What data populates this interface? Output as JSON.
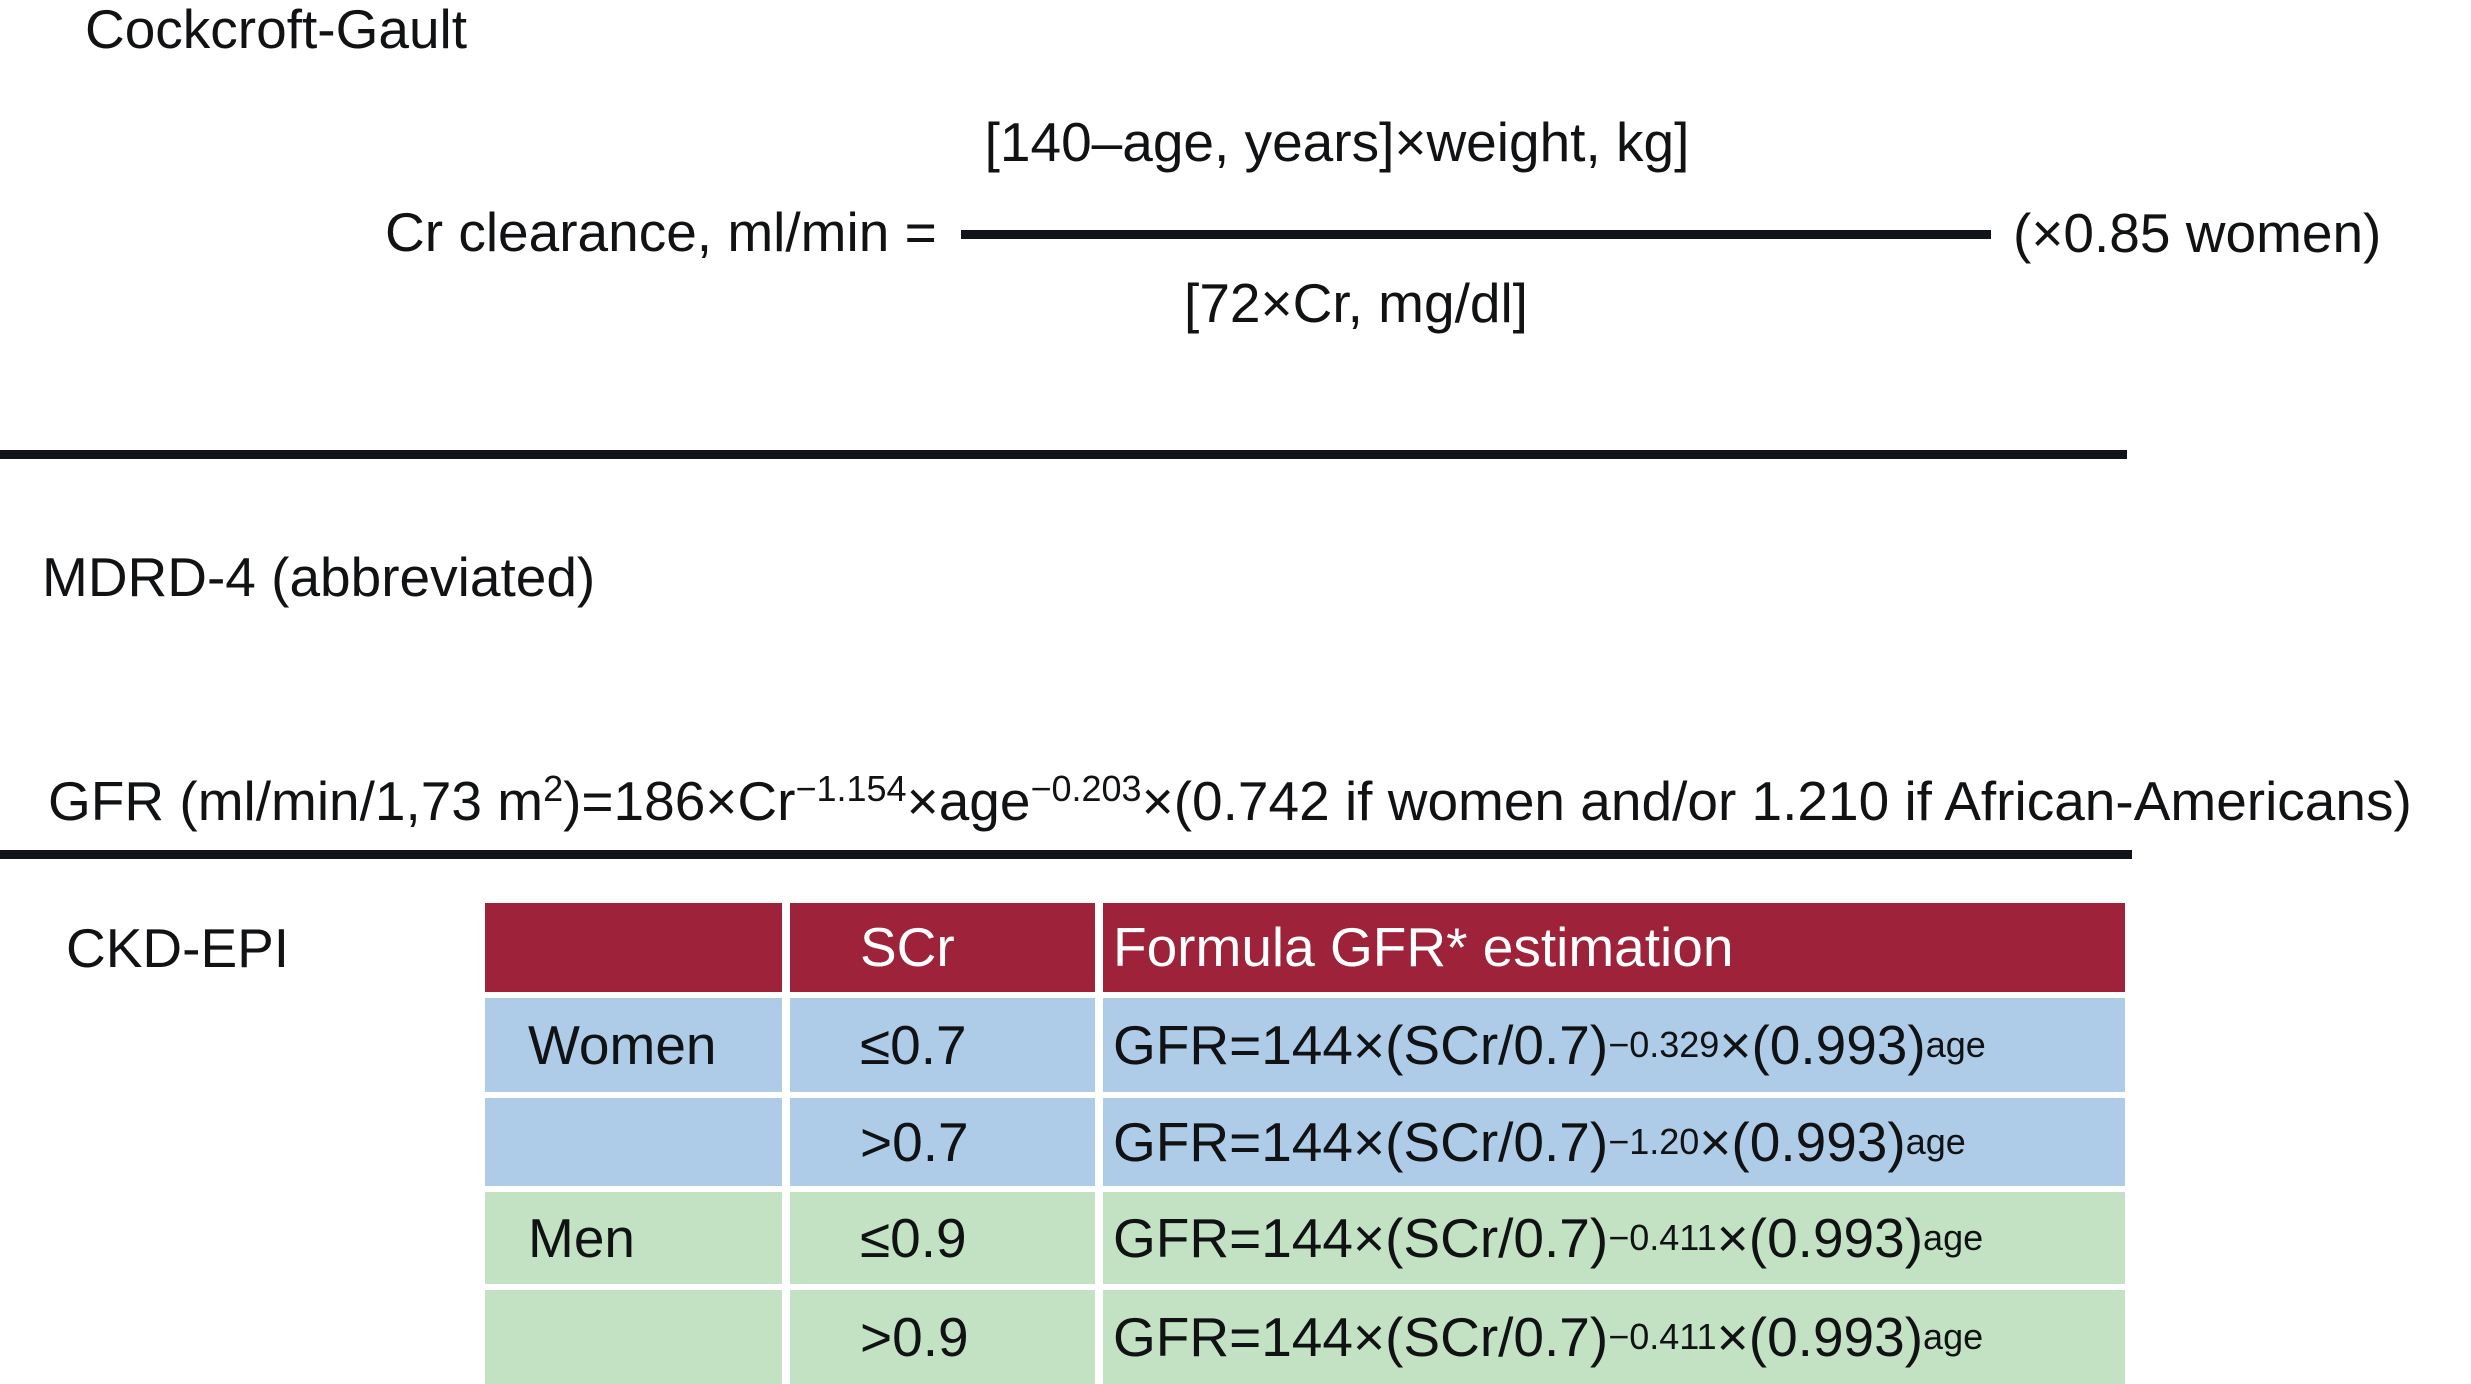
{
  "colors": {
    "header_bg": "#9E2239",
    "header_text": "#FFFFFF",
    "blue": "#AECCE8",
    "green": "#C3E1C3",
    "line": "#101418",
    "text": "#101214"
  },
  "cockcroft_gault": {
    "title": "Cockcroft-Gault",
    "lhs": "Cr clearance, ml/min =",
    "numerator": "[140–age, years]×weight, kg]",
    "denominator": "[72×Cr, mg/dl]",
    "women_factor": "(×0.85 women)"
  },
  "mdrd4": {
    "title": "MDRD-4 (abbreviated)",
    "formula": [
      [
        "t",
        "GFR (ml/min/1,73 m"
      ],
      [
        "s",
        "2"
      ],
      [
        "t",
        ")=186×Cr"
      ],
      [
        "s",
        "−1.154"
      ],
      [
        "t",
        "×age"
      ],
      [
        "s",
        "−0.203"
      ],
      [
        "t",
        "×(0.742 if women and/or 1.210 if African-Americans)"
      ]
    ]
  },
  "ckd_epi": {
    "title": "CKD-EPI",
    "table": {
      "headers": [
        "",
        "SCr",
        "Formula GFR* estimation"
      ],
      "rows": [
        {
          "group": "Women",
          "scr": "≤0.7",
          "theme": "blue",
          "formula": [
            [
              "t",
              "GFR=144×(SCr/0.7)"
            ],
            [
              "s",
              "−0.329"
            ],
            [
              "t",
              "×(0.993)"
            ],
            [
              "s",
              "age"
            ]
          ]
        },
        {
          "group": "",
          "scr": ">0.7",
          "theme": "blue",
          "formula": [
            [
              "t",
              "GFR=144×(SCr/0.7)"
            ],
            [
              "s",
              "−1.20"
            ],
            [
              "t",
              " ×(0.993)"
            ],
            [
              "s",
              "age"
            ]
          ]
        },
        {
          "group": "Men",
          "scr": "≤0.9",
          "theme": "green",
          "formula": [
            [
              "t",
              "GFR=144×(SCr/0.7)"
            ],
            [
              "s",
              "−0.411"
            ],
            [
              "t",
              "×(0.993)"
            ],
            [
              "s",
              "age"
            ]
          ]
        },
        {
          "group": "",
          "scr": ">0.9",
          "theme": "green",
          "formula": [
            [
              "t",
              "GFR=144×(SCr/0.7)"
            ],
            [
              "s",
              "−0.411"
            ],
            [
              "t",
              "×(0.993)"
            ],
            [
              "s",
              "age"
            ]
          ]
        }
      ]
    }
  }
}
